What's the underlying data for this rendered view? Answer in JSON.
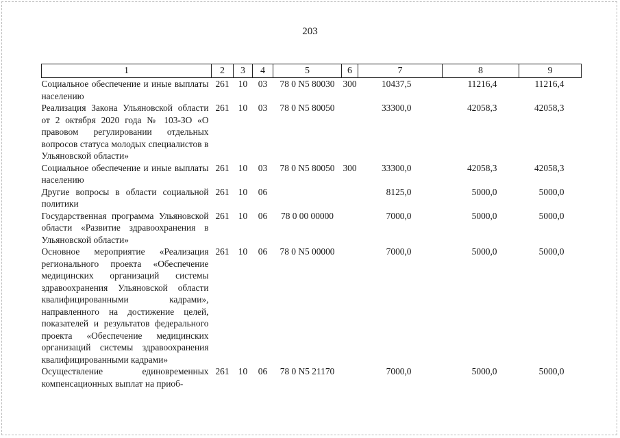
{
  "page_number": "203",
  "header": [
    "1",
    "2",
    "3",
    "4",
    "5",
    "6",
    "7",
    "8",
    "9"
  ],
  "rows": [
    {
      "name": "Социальное обеспечение и иные выплаты населению",
      "c2": "261",
      "c3": "10",
      "c4": "03",
      "c5": "78 0 N5 80030",
      "c6": "300",
      "c7": "10437,5",
      "c8": "11216,4",
      "c9": "11216,4"
    },
    {
      "name": "Реализация Закона Ульяновской области от 2 октября 2020 года № 103-ЗО «О правовом регулировании отдельных вопросов статуса молодых специалистов в Ульяновской области»",
      "c2": "261",
      "c3": "10",
      "c4": "03",
      "c5": "78 0 N5 80050",
      "c6": "",
      "c7": "33300,0",
      "c8": "42058,3",
      "c9": "42058,3"
    },
    {
      "name": "Социальное обеспечение и иные выплаты населению",
      "c2": "261",
      "c3": "10",
      "c4": "03",
      "c5": "78 0 N5 80050",
      "c6": "300",
      "c7": "33300,0",
      "c8": "42058,3",
      "c9": "42058,3"
    },
    {
      "name": "Другие вопросы в области социальной политики",
      "c2": "261",
      "c3": "10",
      "c4": "06",
      "c5": "",
      "c6": "",
      "c7": "8125,0",
      "c8": "5000,0",
      "c9": "5000,0"
    },
    {
      "name": "Государственная программа Ульяновской области «Развитие здравоохранения в Ульяновской области»",
      "c2": "261",
      "c3": "10",
      "c4": "06",
      "c5": "78 0 00 00000",
      "c6": "",
      "c7": "7000,0",
      "c8": "5000,0",
      "c9": "5000,0"
    },
    {
      "name": "Основное мероприятие «Реализация регионального проекта «Обеспечение медицинских организаций системы здравоохранения Ульяновской области квалифицированными кадрами», направленного на достижение целей, показателей и результатов федерального проекта «Обеспечение медицинских организаций системы здравоохранения квалифицированными кадрами»",
      "c2": "261",
      "c3": "10",
      "c4": "06",
      "c5": "78 0 N5 00000",
      "c6": "",
      "c7": "7000,0",
      "c8": "5000,0",
      "c9": "5000,0"
    },
    {
      "name": "Осуществление единовременных компенсационных выплат на приоб-",
      "c2": "261",
      "c3": "10",
      "c4": "06",
      "c5": "78 0 N5 21170",
      "c6": "",
      "c7": "7000,0",
      "c8": "5000,0",
      "c9": "5000,0"
    }
  ]
}
